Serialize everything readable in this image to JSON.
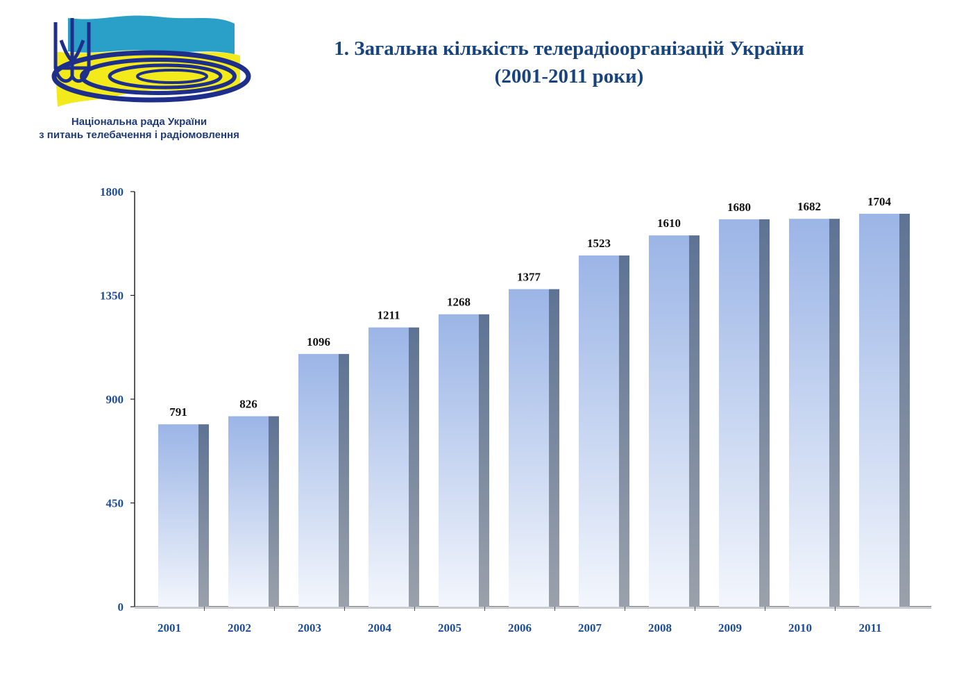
{
  "logo": {
    "org_line_1": "Національна рада України",
    "org_line_2": "з питань телебачення і радіомовлення"
  },
  "title": {
    "line_1": "1. Загальна кількість телерадіоорганізацій України",
    "line_2": "(2001-2011 роки)"
  },
  "colors": {
    "title": "#17447e",
    "axis_labels": "#1f4e96",
    "bar_top": "#9bb5e6",
    "bar_bottom": "#f3f6fc",
    "bar_side_top": "#5e7394",
    "bar_side_bottom": "#9aa1ab"
  },
  "chart_data": {
    "type": "bar",
    "categories": [
      "2001",
      "2002",
      "2003",
      "2004",
      "2005",
      "2006",
      "2007",
      "2008",
      "2009",
      "2010",
      "2011"
    ],
    "values": [
      791,
      826,
      1096,
      1211,
      1268,
      1377,
      1523,
      1610,
      1680,
      1682,
      1704
    ],
    "data_labels": [
      "791",
      "826",
      "1096",
      "1211",
      "1268",
      "1377",
      "1523",
      "1610",
      "1680",
      "1682",
      "1704"
    ],
    "ylim": [
      0,
      1800
    ],
    "yticks": [
      "0",
      "450",
      "900",
      "1350",
      "1800"
    ],
    "grid": false,
    "legend": false
  }
}
